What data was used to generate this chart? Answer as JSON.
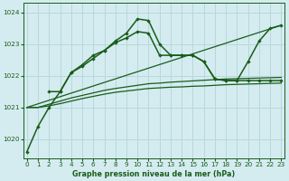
{
  "title": "Graphe pression niveau de la mer (hPa)",
  "bg_color": "#d4ecf0",
  "grid_color": "#b8d8dc",
  "line_color": "#1a5c1a",
  "xlim": [
    -0.3,
    23.3
  ],
  "ylim": [
    1019.4,
    1024.3
  ],
  "yticks": [
    1020,
    1021,
    1022,
    1023,
    1024
  ],
  "xticks": [
    0,
    1,
    2,
    3,
    4,
    5,
    6,
    7,
    8,
    9,
    10,
    11,
    12,
    13,
    14,
    15,
    16,
    17,
    18,
    19,
    20,
    21,
    22,
    23
  ],
  "line1_x": [
    0,
    1,
    2,
    3,
    4,
    5,
    6,
    7,
    8,
    9,
    10,
    11,
    12,
    13,
    14,
    15,
    16,
    17,
    18,
    19,
    20,
    21,
    22,
    23
  ],
  "line1_y": [
    1019.6,
    1020.4,
    1021.0,
    1021.5,
    1022.1,
    1022.35,
    1022.65,
    1022.8,
    1023.1,
    1023.35,
    1023.8,
    1023.75,
    1023.0,
    1022.65,
    1022.65,
    1022.65,
    1022.45,
    1021.9,
    1021.85,
    1021.85,
    1022.45,
    1023.1,
    1023.5,
    1023.6
  ],
  "line2_x": [
    2,
    3,
    4,
    5,
    6,
    7,
    8,
    9,
    10,
    11,
    12,
    13,
    14,
    15,
    16,
    17,
    18,
    19,
    20,
    21,
    22,
    23
  ],
  "line2_y": [
    1021.5,
    1021.5,
    1022.1,
    1022.3,
    1022.55,
    1022.8,
    1023.05,
    1023.2,
    1023.4,
    1023.35,
    1022.65,
    1022.65,
    1022.65,
    1022.65,
    1022.45,
    1021.9,
    1021.85,
    1021.85,
    1021.85,
    1021.85,
    1021.85,
    1021.85
  ],
  "line3_x": [
    0,
    23
  ],
  "line3_y": [
    1021.0,
    1023.6
  ],
  "line4_x": [
    0,
    1,
    2,
    3,
    4,
    5,
    6,
    7,
    8,
    9,
    10,
    11,
    12,
    13,
    14,
    15,
    16,
    17,
    18,
    19,
    20,
    21,
    22,
    23
  ],
  "line4_y": [
    1021.0,
    1021.0,
    1021.05,
    1021.12,
    1021.2,
    1021.28,
    1021.35,
    1021.42,
    1021.48,
    1021.52,
    1021.56,
    1021.6,
    1021.62,
    1021.64,
    1021.65,
    1021.67,
    1021.68,
    1021.7,
    1021.72,
    1021.73,
    1021.74,
    1021.75,
    1021.76,
    1021.77
  ],
  "line5_x": [
    0,
    1,
    2,
    3,
    4,
    5,
    6,
    7,
    8,
    9,
    10,
    11,
    12,
    13,
    14,
    15,
    16,
    17,
    18,
    19,
    20,
    21,
    22,
    23
  ],
  "line5_y": [
    1021.0,
    1021.0,
    1021.1,
    1021.2,
    1021.3,
    1021.38,
    1021.46,
    1021.54,
    1021.6,
    1021.65,
    1021.7,
    1021.75,
    1021.77,
    1021.8,
    1021.82,
    1021.84,
    1021.86,
    1021.88,
    1021.9,
    1021.91,
    1021.92,
    1021.93,
    1021.94,
    1021.95
  ]
}
